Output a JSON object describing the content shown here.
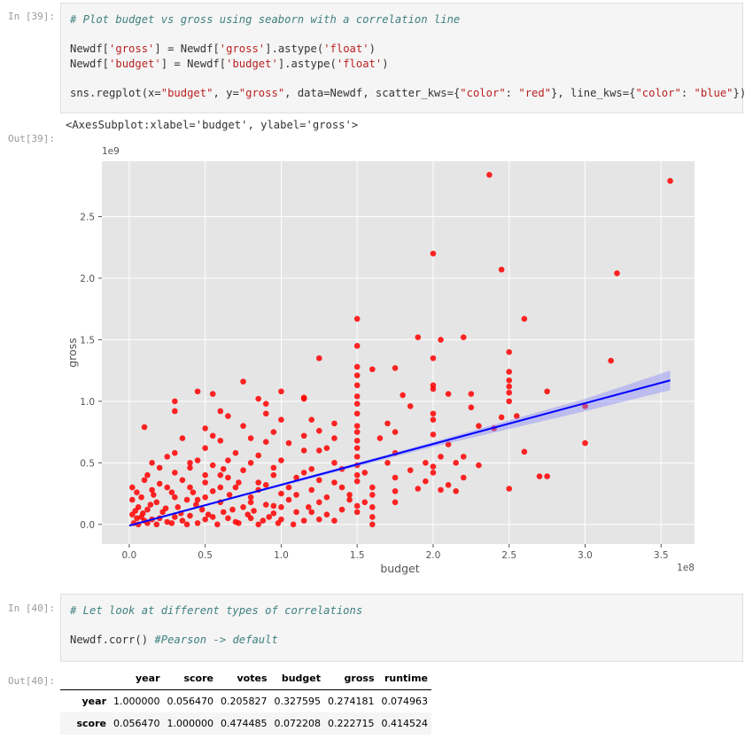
{
  "cells": [
    {
      "prompt_in": "In [39]:",
      "code": {
        "comment": "# Plot budget vs gross using seaborn with a correlation line",
        "l1": [
          "Newdf[",
          "'gross'",
          "] = Newdf[",
          "'gross'",
          "].astype(",
          "'float'",
          ")"
        ],
        "l2": [
          "Newdf[",
          "'budget'",
          "] = Newdf[",
          "'budget'",
          "].astype(",
          "'float'",
          ")"
        ],
        "l3": [
          "sns.regplot(x=",
          "\"budget\"",
          ", y=",
          "\"gross\"",
          ", data=Newdf, scatter_kws={",
          "\"color\"",
          ": ",
          "\"red\"",
          "}, line_kws={",
          "\"color\"",
          ": ",
          "\"blue\"",
          "})"
        ]
      },
      "prompt_out": "Out[39]:",
      "output_text": "<AxesSubplot:xlabel='budget', ylabel='gross'>"
    },
    {
      "prompt_in": "In [40]:",
      "code": {
        "comment": "# Let look at different types of correlations",
        "l1_code": "Newdf.corr() ",
        "l1_comment": "#Pearson -> default"
      },
      "prompt_out": "Out[40]:"
    }
  ],
  "chart_data": {
    "type": "scatter",
    "title": "",
    "xlabel": "budget",
    "ylabel": "gross",
    "x_offset_label": "1e8",
    "y_offset_label": "1e9",
    "xlim": [
      -0.18,
      3.72
    ],
    "ylim": [
      -0.16,
      2.95
    ],
    "xticks": [
      "0.0",
      "0.5",
      "1.0",
      "1.5",
      "2.0",
      "2.5",
      "3.0",
      "3.5"
    ],
    "yticks": [
      "0.0",
      "0.5",
      "1.0",
      "1.5",
      "2.0",
      "2.5"
    ],
    "grid": true,
    "point_color": "#ff0000",
    "line_color": "#0000ff",
    "ci_color": "#8080ff",
    "background": "#e5e5e5",
    "regression": {
      "x": [
        0.0,
        3.56
      ],
      "y": [
        -0.01,
        1.17
      ]
    },
    "ci_band": {
      "x": [
        0.0,
        1.0,
        2.0,
        3.0,
        3.56
      ],
      "lower": [
        -0.02,
        0.31,
        0.63,
        0.92,
        1.09
      ],
      "upper": [
        0.0,
        0.33,
        0.67,
        1.02,
        1.25
      ]
    },
    "points": [
      [
        2.37,
        2.84
      ],
      [
        3.56,
        2.79
      ],
      [
        2.0,
        2.2
      ],
      [
        2.45,
        2.07
      ],
      [
        3.21,
        2.04
      ],
      [
        1.5,
        1.67
      ],
      [
        2.6,
        1.67
      ],
      [
        1.9,
        1.52
      ],
      [
        2.2,
        1.52
      ],
      [
        2.05,
        1.5
      ],
      [
        1.5,
        1.45
      ],
      [
        2.5,
        1.4
      ],
      [
        1.25,
        1.35
      ],
      [
        2.0,
        1.35
      ],
      [
        3.17,
        1.33
      ],
      [
        1.5,
        1.28
      ],
      [
        1.6,
        1.26
      ],
      [
        1.75,
        1.27
      ],
      [
        2.5,
        1.24
      ],
      [
        1.5,
        1.21
      ],
      [
        2.5,
        1.17
      ],
      [
        0.75,
        1.16
      ],
      [
        1.5,
        1.13
      ],
      [
        2.0,
        1.13
      ],
      [
        2.5,
        1.12
      ],
      [
        2.0,
        1.1
      ],
      [
        1.0,
        1.08
      ],
      [
        0.45,
        1.08
      ],
      [
        0.55,
        1.06
      ],
      [
        2.75,
        1.08
      ],
      [
        2.5,
        1.07
      ],
      [
        2.1,
        1.06
      ],
      [
        2.25,
        1.06
      ],
      [
        1.8,
        1.05
      ],
      [
        1.5,
        1.04
      ],
      [
        1.15,
        1.03
      ],
      [
        0.85,
        1.02
      ],
      [
        0.3,
        1.0
      ],
      [
        1.15,
        1.02
      ],
      [
        2.5,
        1.0
      ],
      [
        1.5,
        0.98
      ],
      [
        0.9,
        0.98
      ],
      [
        3.0,
        0.96
      ],
      [
        1.85,
        0.96
      ],
      [
        2.25,
        0.95
      ],
      [
        0.6,
        0.92
      ],
      [
        0.3,
        0.92
      ],
      [
        0.9,
        0.9
      ],
      [
        2.0,
        0.9
      ],
      [
        2.45,
        0.87
      ],
      [
        2.55,
        0.88
      ],
      [
        1.7,
        0.82
      ],
      [
        1.35,
        0.82
      ],
      [
        2.0,
        0.85
      ],
      [
        2.3,
        0.8
      ],
      [
        0.1,
        0.79
      ],
      [
        1.25,
        0.76
      ],
      [
        1.75,
        0.75
      ],
      [
        2.4,
        0.78
      ],
      [
        2.0,
        0.73
      ],
      [
        1.65,
        0.7
      ],
      [
        0.35,
        0.7
      ],
      [
        1.5,
        0.68
      ],
      [
        0.9,
        0.67
      ],
      [
        3.0,
        0.66
      ],
      [
        2.1,
        0.65
      ],
      [
        1.3,
        0.62
      ],
      [
        2.6,
        0.59
      ],
      [
        1.75,
        0.58
      ],
      [
        0.5,
        0.62
      ],
      [
        1.15,
        0.6
      ],
      [
        0.7,
        0.58
      ],
      [
        2.05,
        0.55
      ],
      [
        2.2,
        0.55
      ],
      [
        1.95,
        0.5
      ],
      [
        1.7,
        0.5
      ],
      [
        1.0,
        0.52
      ],
      [
        0.25,
        0.55
      ],
      [
        2.15,
        0.5
      ],
      [
        2.3,
        0.48
      ],
      [
        2.0,
        0.47
      ],
      [
        1.4,
        0.45
      ],
      [
        1.85,
        0.44
      ],
      [
        1.55,
        0.42
      ],
      [
        2.0,
        0.42
      ],
      [
        1.15,
        0.42
      ],
      [
        0.6,
        0.4
      ],
      [
        2.2,
        0.38
      ],
      [
        2.7,
        0.39
      ],
      [
        2.75,
        0.39
      ],
      [
        1.75,
        0.38
      ],
      [
        1.95,
        0.35
      ],
      [
        2.1,
        0.32
      ],
      [
        1.5,
        0.35
      ],
      [
        0.85,
        0.34
      ],
      [
        1.6,
        0.3
      ],
      [
        2.5,
        0.29
      ],
      [
        1.9,
        0.29
      ],
      [
        2.05,
        0.28
      ],
      [
        2.15,
        0.27
      ],
      [
        1.75,
        0.27
      ],
      [
        1.45,
        0.24
      ],
      [
        1.6,
        0.24
      ],
      [
        1.0,
        0.25
      ],
      [
        1.55,
        0.18
      ],
      [
        1.75,
        0.18
      ],
      [
        1.5,
        0.15
      ],
      [
        1.6,
        0.14
      ],
      [
        1.5,
        0.1
      ],
      [
        1.6,
        0.06
      ],
      [
        1.6,
        0.0
      ],
      [
        1.2,
        0.1
      ],
      [
        0.4,
        0.3
      ],
      [
        0.8,
        0.22
      ],
      [
        0.95,
        0.15
      ],
      [
        0.45,
        0.52
      ],
      [
        0.55,
        0.48
      ],
      [
        0.62,
        0.45
      ],
      [
        0.75,
        0.44
      ],
      [
        0.2,
        0.46
      ],
      [
        0.3,
        0.42
      ],
      [
        0.12,
        0.4
      ],
      [
        0.65,
        0.38
      ],
      [
        0.95,
        0.4
      ],
      [
        1.1,
        0.38
      ],
      [
        1.25,
        0.36
      ],
      [
        1.35,
        0.34
      ],
      [
        0.5,
        0.34
      ],
      [
        0.35,
        0.36
      ],
      [
        0.2,
        0.33
      ],
      [
        0.05,
        0.26
      ],
      [
        0.08,
        0.22
      ],
      [
        0.15,
        0.28
      ],
      [
        0.25,
        0.3
      ],
      [
        0.42,
        0.26
      ],
      [
        0.55,
        0.27
      ],
      [
        0.7,
        0.3
      ],
      [
        0.85,
        0.28
      ],
      [
        1.05,
        0.3
      ],
      [
        1.2,
        0.28
      ],
      [
        1.3,
        0.22
      ],
      [
        1.4,
        0.3
      ],
      [
        1.45,
        0.2
      ],
      [
        1.25,
        0.18
      ],
      [
        1.05,
        0.2
      ],
      [
        0.9,
        0.16
      ],
      [
        0.75,
        0.14
      ],
      [
        0.6,
        0.18
      ],
      [
        0.45,
        0.2
      ],
      [
        0.3,
        0.22
      ],
      [
        0.18,
        0.18
      ],
      [
        0.02,
        0.2
      ],
      [
        0.06,
        0.14
      ],
      [
        0.12,
        0.12
      ],
      [
        0.22,
        0.1
      ],
      [
        0.32,
        0.14
      ],
      [
        0.48,
        0.12
      ],
      [
        0.62,
        0.1
      ],
      [
        0.78,
        0.08
      ],
      [
        0.95,
        0.09
      ],
      [
        1.1,
        0.1
      ],
      [
        1.3,
        0.08
      ],
      [
        1.4,
        0.12
      ],
      [
        0.02,
        0.08
      ],
      [
        0.05,
        0.05
      ],
      [
        0.08,
        0.06
      ],
      [
        0.1,
        0.03
      ],
      [
        0.15,
        0.04
      ],
      [
        0.2,
        0.05
      ],
      [
        0.25,
        0.02
      ],
      [
        0.3,
        0.06
      ],
      [
        0.35,
        0.03
      ],
      [
        0.4,
        0.07
      ],
      [
        0.5,
        0.04
      ],
      [
        0.55,
        0.06
      ],
      [
        0.65,
        0.05
      ],
      [
        0.7,
        0.02
      ],
      [
        0.8,
        0.05
      ],
      [
        0.88,
        0.03
      ],
      [
        1.0,
        0.04
      ],
      [
        1.15,
        0.03
      ],
      [
        1.25,
        0.04
      ],
      [
        1.35,
        0.03
      ],
      [
        0.03,
        0.01
      ],
      [
        0.06,
        0.0
      ],
      [
        0.12,
        0.01
      ],
      [
        0.18,
        0.0
      ],
      [
        0.28,
        0.01
      ],
      [
        0.38,
        0.0
      ],
      [
        0.45,
        0.01
      ],
      [
        0.58,
        0.0
      ],
      [
        0.72,
        0.01
      ],
      [
        0.85,
        0.0
      ],
      [
        0.98,
        0.01
      ],
      [
        1.08,
        0.0
      ],
      [
        0.04,
        0.11
      ],
      [
        0.09,
        0.09
      ],
      [
        0.14,
        0.16
      ],
      [
        0.24,
        0.13
      ],
      [
        0.34,
        0.09
      ],
      [
        0.44,
        0.16
      ],
      [
        0.52,
        0.08
      ],
      [
        0.68,
        0.12
      ],
      [
        0.82,
        0.11
      ],
      [
        0.92,
        0.06
      ],
      [
        0.16,
        0.24
      ],
      [
        0.28,
        0.26
      ],
      [
        0.38,
        0.2
      ],
      [
        0.5,
        0.22
      ],
      [
        0.66,
        0.24
      ],
      [
        0.8,
        0.18
      ],
      [
        1.0,
        0.14
      ],
      [
        1.18,
        0.14
      ],
      [
        0.72,
        0.34
      ],
      [
        0.6,
        0.3
      ],
      [
        0.9,
        0.32
      ],
      [
        1.1,
        0.24
      ],
      [
        0.4,
        0.46
      ],
      [
        0.5,
        0.4
      ],
      [
        0.8,
        0.5
      ],
      [
        0.95,
        0.46
      ],
      [
        1.2,
        0.45
      ],
      [
        1.35,
        0.5
      ],
      [
        0.85,
        0.56
      ],
      [
        0.65,
        0.52
      ],
      [
        0.3,
        0.58
      ],
      [
        0.4,
        0.5
      ],
      [
        0.15,
        0.5
      ],
      [
        0.1,
        0.36
      ],
      [
        0.02,
        0.3
      ],
      [
        0.55,
        0.72
      ],
      [
        0.6,
        0.68
      ],
      [
        0.8,
        0.7
      ],
      [
        1.05,
        0.66
      ],
      [
        1.25,
        0.6
      ],
      [
        0.75,
        0.8
      ],
      [
        0.95,
        0.75
      ],
      [
        1.15,
        0.72
      ],
      [
        1.35,
        0.7
      ],
      [
        0.5,
        0.78
      ],
      [
        1.0,
        0.85
      ],
      [
        1.2,
        0.85
      ],
      [
        0.65,
        0.88
      ],
      [
        1.5,
        0.9
      ],
      [
        1.5,
        0.55
      ],
      [
        1.5,
        0.62
      ],
      [
        1.5,
        0.75
      ],
      [
        1.5,
        0.8
      ],
      [
        1.5,
        0.48
      ],
      [
        1.5,
        0.4
      ]
    ]
  },
  "corr_table": {
    "columns": [
      "year",
      "score",
      "votes",
      "budget",
      "gross",
      "runtime"
    ],
    "rows": [
      {
        "index": "year",
        "values": [
          "1.000000",
          "0.056470",
          "0.205827",
          "0.327595",
          "0.274181",
          "0.074963"
        ]
      },
      {
        "index": "score",
        "values": [
          "0.056470",
          "1.000000",
          "0.474485",
          "0.072208",
          "0.222715",
          "0.414524"
        ]
      }
    ]
  }
}
